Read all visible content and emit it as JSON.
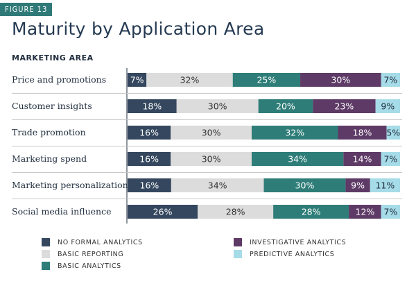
{
  "figure_label": "FIGURE 13",
  "title": "Maturity by Application Area",
  "section_label": "MARKETING AREA",
  "colors": {
    "no_formal": "#34475e",
    "basic_reporting": "#dcdcdc",
    "basic_analytics": "#2e7d78",
    "investigative": "#5e3a66",
    "predictive": "#a6dbe8"
  },
  "chart_data": {
    "type": "bar",
    "orientation": "horizontal",
    "stacked": true,
    "value_suffix": "%",
    "categories": [
      "Price and promotions",
      "Customer insights",
      "Trade promotion",
      "Marketing spend",
      "Marketing personalization",
      "Social media influence"
    ],
    "series": [
      {
        "name": "NO FORMAL ANALYTICS",
        "values": [
          7,
          18,
          16,
          16,
          16,
          26
        ]
      },
      {
        "name": "BASIC REPORTING",
        "values": [
          32,
          30,
          30,
          30,
          34,
          28
        ]
      },
      {
        "name": "BASIC ANALYTICS",
        "values": [
          25,
          20,
          32,
          34,
          30,
          28
        ]
      },
      {
        "name": "INVESTIGATIVE ANALYTICS",
        "values": [
          30,
          23,
          18,
          14,
          9,
          12
        ]
      },
      {
        "name": "PREDICTIVE ANALYTICS",
        "values": [
          7,
          9,
          5,
          7,
          11,
          7
        ]
      }
    ],
    "legend_position": "bottom"
  }
}
